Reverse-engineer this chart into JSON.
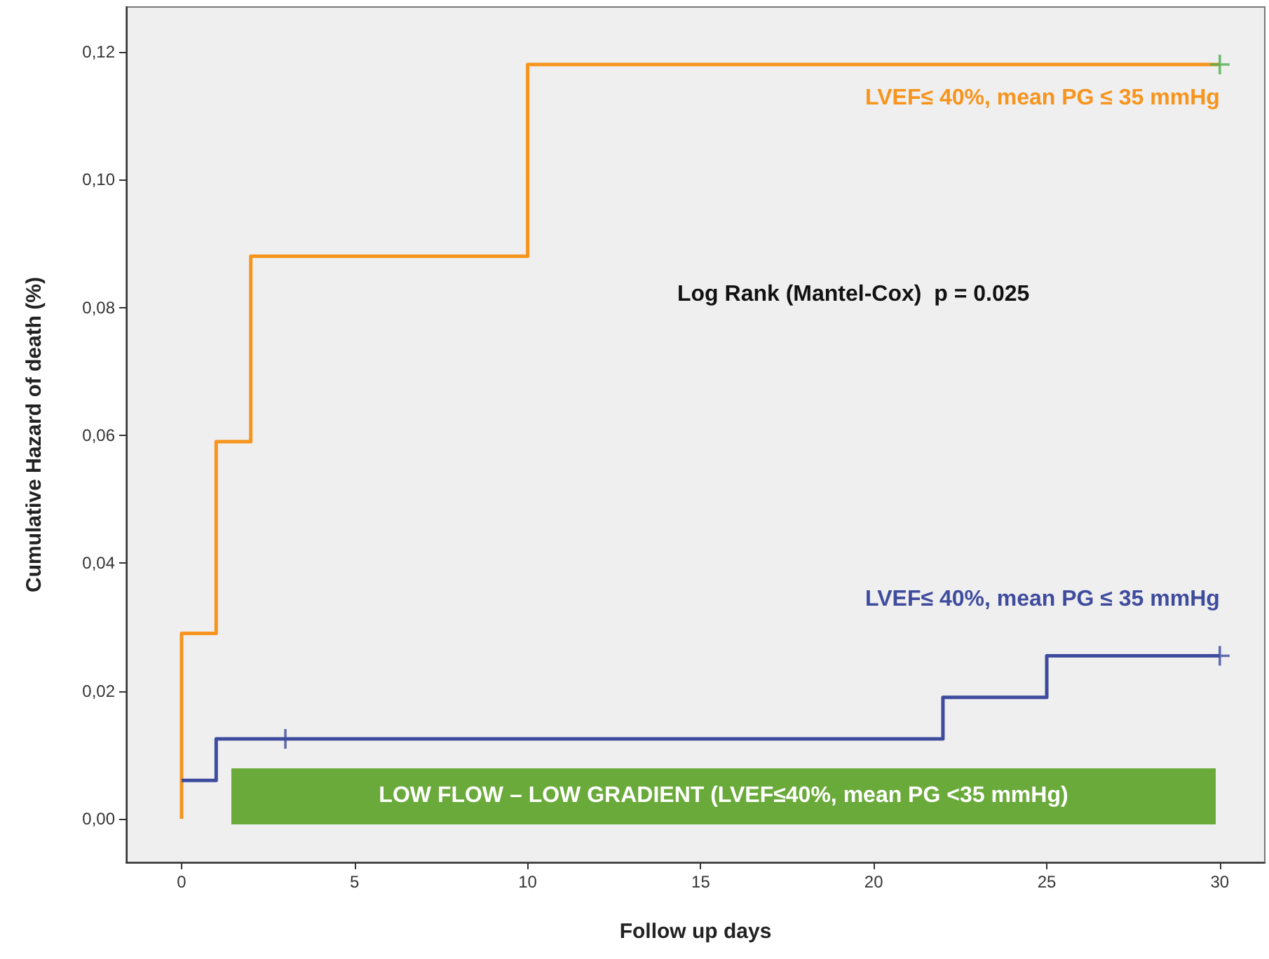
{
  "chart_data": {
    "type": "step",
    "xlabel": "Follow up days",
    "ylabel": "Cumulative Hazard of death (%)",
    "xlim": [
      -1.6,
      31.3
    ],
    "xticks": [
      0,
      5,
      10,
      15,
      20,
      25,
      30
    ],
    "ylim": [
      -0.0068,
      0.127
    ],
    "yticks": [
      {
        "value": 0,
        "label": "0,00"
      },
      {
        "value": 0.02,
        "label": "0,02"
      },
      {
        "value": 0.04,
        "label": "0,04"
      },
      {
        "value": 0.06,
        "label": "0,06"
      },
      {
        "value": 0.08,
        "label": "0,08"
      },
      {
        "value": 0.1,
        "label": "0,10"
      },
      {
        "value": 0.12,
        "label": "0,12"
      }
    ],
    "grid": false,
    "legend": false,
    "series": [
      {
        "name": "LVEF≤ 40%, mean PG ≤ 35 mmHg",
        "color": "#f7941d",
        "x": [
          0,
          0,
          1,
          2,
          10,
          30
        ],
        "values": [
          0,
          0.029,
          0.059,
          0.088,
          0.118,
          0.118
        ]
      },
      {
        "name": "LVEF≤ 40%, mean PG ≤ 35 mmHg",
        "color": "#3f4c9e",
        "x": [
          0,
          1,
          3,
          22,
          25,
          30
        ],
        "values": [
          0.006,
          0.0125,
          0.0125,
          0.019,
          0.0255,
          0.0255
        ]
      },
      {
        "type": "scatter",
        "marker": "cross",
        "color": "#4caf50",
        "x": [
          30
        ],
        "values": [
          0.118
        ]
      },
      {
        "type": "scatter",
        "marker": "cross",
        "color": "#3f4c9e",
        "x": [
          3,
          30
        ],
        "values": [
          0.0125,
          0.0255
        ]
      }
    ],
    "annotations": [
      "Log Rank (Mantel-Cox)  p = 0.025",
      "LOW FLOW – LOW GRADIENT (LVEF≤40%, mean PG <35 mmHg)"
    ]
  }
}
